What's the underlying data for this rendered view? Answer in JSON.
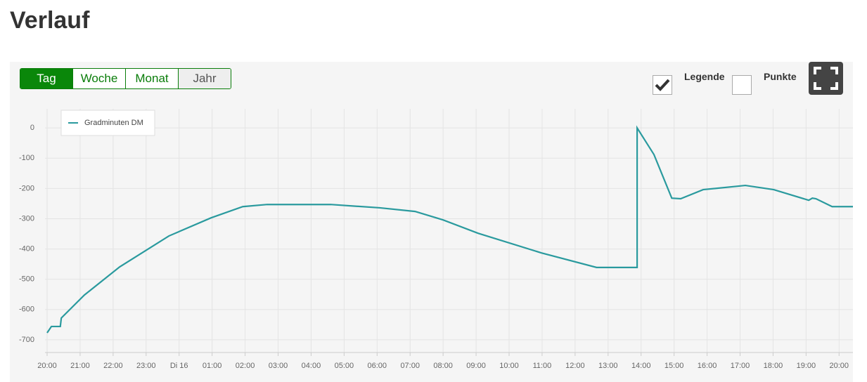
{
  "header": {
    "title": "Verlauf"
  },
  "toolbar": {
    "buttons": [
      "Tag",
      "Woche",
      "Monat",
      "Jahr"
    ],
    "active_index": 0,
    "checkboxes": [
      {
        "label": "Legende",
        "checked": true
      },
      {
        "label": "Punkte",
        "checked": false
      }
    ]
  },
  "chart_data": {
    "type": "line",
    "x": [
      0,
      0.13,
      0.4,
      0.43,
      1.13,
      2.2,
      3.69,
      4.97,
      5.93,
      6.67,
      8.59,
      10.08,
      11.15,
      12.0,
      13.06,
      14.98,
      16.65,
      17.88,
      17.88,
      18.39,
      18.93,
      19.2,
      19.88,
      21.16,
      22.02,
      23.08,
      23.19,
      23.3,
      23.79,
      24.42
    ],
    "series": [
      {
        "name": "Gradminuten DM",
        "color": "#2a9a9e",
        "values": [
          -677,
          -656,
          -656,
          -628,
          -552,
          -459,
          -357,
          -297,
          -260,
          -253,
          -253,
          -264,
          -276,
          -304,
          -348,
          -413,
          -461,
          -461,
          0,
          -88,
          -232,
          -234,
          -204,
          -190,
          -204,
          -239,
          -232,
          -234,
          -260,
          -260
        ]
      }
    ],
    "xlim": [
      -0.064,
      24.42
    ],
    "xticks": [
      {
        "value": 0,
        "label": "20:00"
      },
      {
        "value": 1,
        "label": "21:00"
      },
      {
        "value": 2,
        "label": "22:00"
      },
      {
        "value": 3,
        "label": "23:00"
      },
      {
        "value": 4,
        "label": "Di 16"
      },
      {
        "value": 5,
        "label": "01:00"
      },
      {
        "value": 6,
        "label": "02:00"
      },
      {
        "value": 7,
        "label": "03:00"
      },
      {
        "value": 8,
        "label": "04:00"
      },
      {
        "value": 9,
        "label": "05:00"
      },
      {
        "value": 10,
        "label": "06:00"
      },
      {
        "value": 11,
        "label": "07:00"
      },
      {
        "value": 12,
        "label": "08:00"
      },
      {
        "value": 13,
        "label": "09:00"
      },
      {
        "value": 14,
        "label": "10:00"
      },
      {
        "value": 15,
        "label": "11:00"
      },
      {
        "value": 16,
        "label": "12:00"
      },
      {
        "value": 17,
        "label": "13:00"
      },
      {
        "value": 18,
        "label": "14:00"
      },
      {
        "value": 19,
        "label": "15:00"
      },
      {
        "value": 20,
        "label": "16:00"
      },
      {
        "value": 21,
        "label": "17:00"
      },
      {
        "value": 22,
        "label": "18:00"
      },
      {
        "value": 23,
        "label": "19:00"
      },
      {
        "value": 24,
        "label": "20:00"
      }
    ],
    "ylim": [
      -742,
      63
    ],
    "yticks": [
      0,
      -100,
      -200,
      -300,
      -400,
      -500,
      -600,
      -700
    ],
    "grid": true,
    "legend": "upper left"
  }
}
